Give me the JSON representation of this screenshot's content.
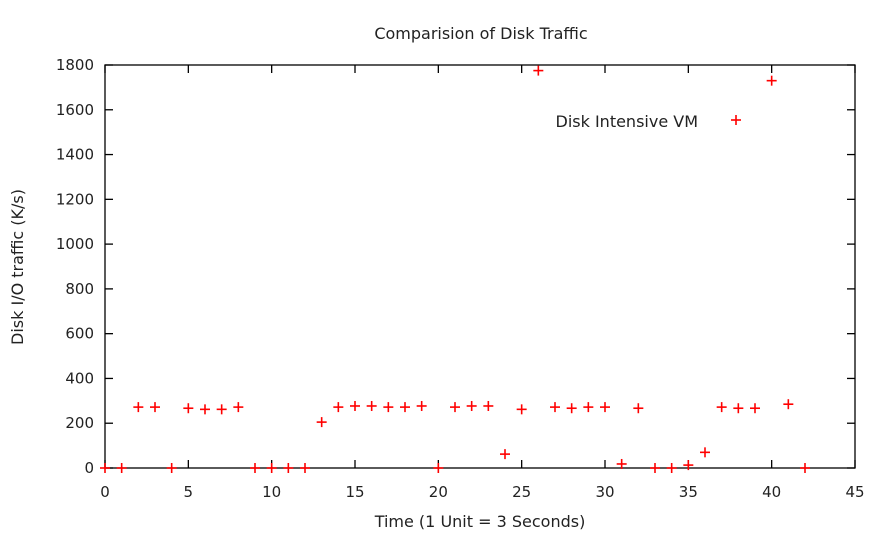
{
  "chart_data": {
    "type": "scatter",
    "title": "Comparision of Disk Traffic",
    "xlabel": "Time (1 Unit = 3 Seconds)",
    "ylabel": "Disk I/O traffic (K/s)",
    "xlim": [
      0,
      45
    ],
    "ylim": [
      0,
      1800
    ],
    "xticks": [
      0,
      5,
      10,
      15,
      20,
      25,
      30,
      35,
      40,
      45
    ],
    "yticks": [
      0,
      200,
      400,
      600,
      800,
      1000,
      1200,
      1400,
      1600,
      1800
    ],
    "grid": false,
    "legend": "top-right",
    "marker": "+",
    "series": [
      {
        "name": "Disk Intensive VM",
        "color": "#ff0000",
        "x": [
          0,
          1,
          2,
          3,
          4,
          5,
          6,
          7,
          8,
          9,
          10,
          11,
          12,
          13,
          14,
          15,
          16,
          17,
          18,
          19,
          20,
          21,
          22,
          23,
          24,
          25,
          26,
          27,
          28,
          29,
          30,
          31,
          32,
          33,
          34,
          35,
          36,
          37,
          38,
          39,
          40,
          41,
          42
        ],
        "y": [
          0,
          0,
          272,
          272,
          0,
          267,
          262,
          262,
          272,
          0,
          0,
          0,
          0,
          205,
          272,
          277,
          277,
          272,
          272,
          277,
          0,
          272,
          277,
          277,
          62,
          262,
          1775,
          272,
          267,
          272,
          272,
          18,
          267,
          0,
          0,
          13,
          70,
          272,
          267,
          267,
          1730,
          285,
          0
        ]
      }
    ]
  }
}
